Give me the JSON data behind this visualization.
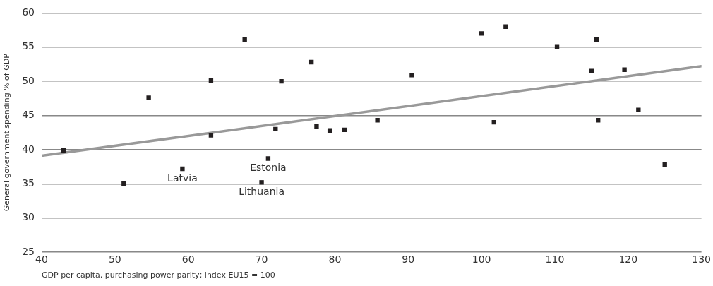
{
  "chart_data": {
    "type": "scatter",
    "xlabel": "GDP per capita, purchasing power parity; index EU15 = 100",
    "ylabel": "General government spending % of GDP",
    "xlim": [
      40,
      130
    ],
    "xticks": [
      40,
      50,
      60,
      70,
      80,
      90,
      100,
      110,
      120,
      130
    ],
    "ylim": [
      25,
      60
    ],
    "yticks": [
      25,
      30,
      35,
      40,
      45,
      50,
      55,
      60
    ],
    "grid": "y",
    "legend": false,
    "marker": "square",
    "series": [
      {
        "color": "#231f20",
        "x": [
          43,
          51.2,
          54.6,
          59.2,
          63.1,
          63.1,
          67.7,
          70,
          70.9,
          72.7,
          71.9,
          76.8,
          77.5,
          79.3,
          81.3,
          85.8,
          90.5,
          100,
          101.7,
          103.3,
          110.3,
          115,
          115.7,
          115.9,
          119.5,
          121.4,
          125
        ],
        "values": [
          39.9,
          35,
          47.6,
          37.2,
          50.1,
          42.1,
          56.1,
          35.2,
          38.7,
          50,
          43,
          52.8,
          43.4,
          42.8,
          42.9,
          44.3,
          50.9,
          57,
          44,
          58,
          55,
          51.5,
          56.1,
          44.3,
          51.7,
          45.8,
          37.8
        ]
      },
      {
        "type": "line",
        "color": "#999999",
        "x": [
          40,
          130
        ],
        "values": [
          39.1,
          52.2
        ],
        "marker": "none"
      }
    ],
    "annotations": [
      {
        "text": "Latvia",
        "x": 59.2,
        "y": 37.2
      },
      {
        "text": "Estonia",
        "x": 70.9,
        "y": 38.7
      },
      {
        "text": "Lithuania",
        "x": 70,
        "y": 35.2
      }
    ]
  }
}
